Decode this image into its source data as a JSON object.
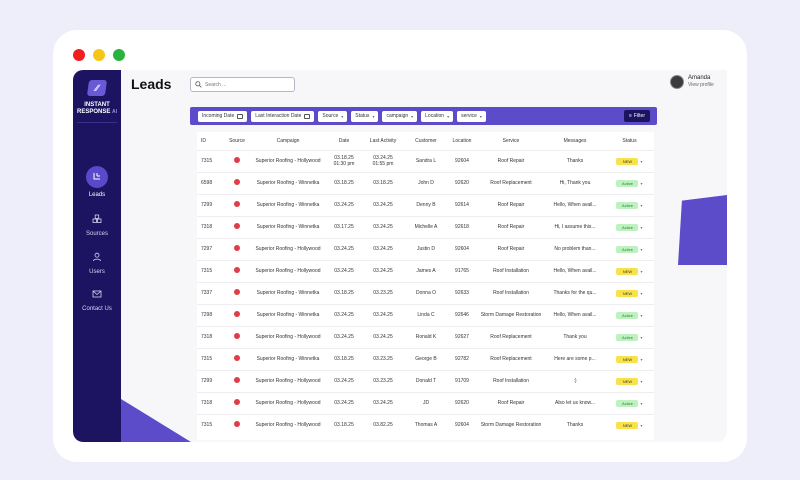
{
  "window": {
    "dots": [
      "red",
      "yellow",
      "green"
    ]
  },
  "brand": {
    "name_line1": "INSTANT",
    "name_line2": "RESPONSE",
    "name_suffix": "AI"
  },
  "sidebar": {
    "items": [
      {
        "label": "Leads",
        "icon": "leads-icon",
        "active": true
      },
      {
        "label": "Sources",
        "icon": "sources-icon",
        "active": false
      },
      {
        "label": "Users",
        "icon": "user-icon",
        "active": false
      },
      {
        "label": "Contact Us",
        "icon": "mail-icon",
        "active": false
      }
    ]
  },
  "header": {
    "title": "Leads",
    "search_placeholder": "Search ...",
    "profile": {
      "name": "Amanda",
      "link": "View profile"
    }
  },
  "filters": {
    "chips": [
      "Incoming Date",
      "Last Interaction Date",
      "Source",
      "Status",
      "campaign",
      "Location",
      "service"
    ],
    "filter_button": "Filter"
  },
  "table": {
    "columns": [
      "ID",
      "Source",
      "Campaign",
      "Date",
      "Last Activity",
      "Customer",
      "Location",
      "Service",
      "Messages",
      "Status"
    ],
    "rows": [
      {
        "id": "7315",
        "campaign": "Superior Roofing - Hollywood",
        "date": "03.18.25",
        "date2": "01:30 pm",
        "last": "03.24.25",
        "last2": "01:55 pm",
        "customer": "Sandra L",
        "location": "92604",
        "service": "Roof Repair",
        "messages": "Thanks",
        "status": "NEW"
      },
      {
        "id": "6598",
        "campaign": "Superior Roofing - Winnetka",
        "date": "03.18.25",
        "date2": "",
        "last": "03.18.25",
        "last2": "",
        "customer": "John D",
        "location": "92620",
        "service": "Roof Replacement",
        "messages": "Hi, Thank you",
        "status": "Active"
      },
      {
        "id": "7299",
        "campaign": "Superior Roofing - Winnetka",
        "date": "03.24.25",
        "date2": "",
        "last": "03.24.25",
        "last2": "",
        "customer": "Denny B",
        "location": "92614",
        "service": "Roof Repair",
        "messages": "Hello, When avail...",
        "status": "Active"
      },
      {
        "id": "7318",
        "campaign": "Superior Roofing - Winnetka",
        "date": "03.17.25",
        "date2": "",
        "last": "03.24.25",
        "last2": "",
        "customer": "Michelle A",
        "location": "92618",
        "service": "Roof Repair",
        "messages": "Hi, I assume this...",
        "status": "Active"
      },
      {
        "id": "7297",
        "campaign": "Superior Roofing - Hollywood",
        "date": "03.24.25",
        "date2": "",
        "last": "03.24.25",
        "last2": "",
        "customer": "Justin D",
        "location": "92604",
        "service": "Roof Repair",
        "messages": "No problem than...",
        "status": "Active"
      },
      {
        "id": "7315",
        "campaign": "Superior Roofing - Hollywood",
        "date": "03.24.25",
        "date2": "",
        "last": "03.24.25",
        "last2": "",
        "customer": "James A",
        "location": "91765",
        "service": "Roof Installation",
        "messages": "Hello, When avail...",
        "status": "NEW"
      },
      {
        "id": "7337",
        "campaign": "Superior Roofing - Winnetka",
        "date": "03.18.25",
        "date2": "",
        "last": "03.23.25",
        "last2": "",
        "customer": "Donna O",
        "location": "92633",
        "service": "Roof Installation",
        "messages": "Thanks for the qu...",
        "status": "NEW"
      },
      {
        "id": "7298",
        "campaign": "Superior Roofing - Winnetka",
        "date": "03.24.25",
        "date2": "",
        "last": "03.24.25",
        "last2": "",
        "customer": "Linda C",
        "location": "92646",
        "service": "Storm Damage Restoration",
        "messages": "Hello, When avail...",
        "status": "Active"
      },
      {
        "id": "7318",
        "campaign": "Superior Roofing - Hollywood",
        "date": "03.24.25",
        "date2": "",
        "last": "03.24.25",
        "last2": "",
        "customer": "Ronald K",
        "location": "92627",
        "service": "Roof Replacement",
        "messages": "Thank you",
        "status": "Active"
      },
      {
        "id": "7315",
        "campaign": "Superior Roofing - Winnetka",
        "date": "03.18.25",
        "date2": "",
        "last": "03.23.25",
        "last2": "",
        "customer": "George B",
        "location": "92782",
        "service": "Roof Replacement",
        "messages": "Here are some p...",
        "status": "NEW"
      },
      {
        "id": "7299",
        "campaign": "Superior Roofing - Hollywood",
        "date": "03.24.25",
        "date2": "",
        "last": "03.23.25",
        "last2": "",
        "customer": "Donald T",
        "location": "91709",
        "service": "Roof Installation",
        "messages": ":)",
        "status": "NEW"
      },
      {
        "id": "7318",
        "campaign": "Superior Roofing - Hollywood",
        "date": "03.24.25",
        "date2": "",
        "last": "03.24.25",
        "last2": "",
        "customer": "JD",
        "location": "92620",
        "service": "Roof Repair",
        "messages": "Also let us know...",
        "status": "Active"
      },
      {
        "id": "7315",
        "campaign": "Superior Roofing - Hollywood",
        "date": "03.18.25",
        "date2": "",
        "last": "03.82.25",
        "last2": "",
        "customer": "Thomas A",
        "location": "92604",
        "service": "Storm Damage Restoration",
        "messages": "Thanks",
        "status": "NEW"
      }
    ]
  },
  "colors": {
    "accent": "#5c4cc9",
    "sidebar": "#1c1361",
    "new_badge": "#f8e24b",
    "active_badge": "#bdf2c0",
    "source_dot": "#e23b4a"
  }
}
